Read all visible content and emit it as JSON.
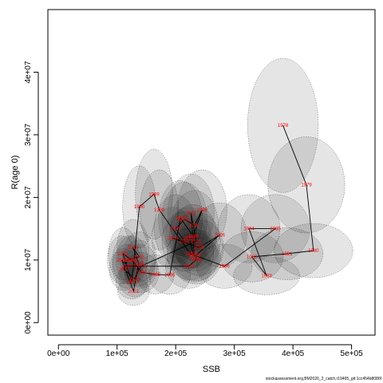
{
  "chart_data": {
    "type": "scatter",
    "xlabel": "SSB",
    "ylabel": "R(age 0)",
    "xlim": [
      -18000,
      540000
    ],
    "ylim": [
      -2000000,
      50000000
    ],
    "x_ticks": [
      {
        "value": 0,
        "label": "0e+00"
      },
      {
        "value": 100000,
        "label": "1e+05"
      },
      {
        "value": 200000,
        "label": "2e+05"
      },
      {
        "value": 300000,
        "label": "3e+05"
      },
      {
        "value": 400000,
        "label": "4e+05"
      },
      {
        "value": 500000,
        "label": "5e+05"
      }
    ],
    "y_ticks": [
      {
        "value": 0,
        "label": "0e+00"
      },
      {
        "value": 10000000,
        "label": "1e+07"
      },
      {
        "value": 20000000,
        "label": "2e+07"
      },
      {
        "value": 30000000,
        "label": "3e+07"
      },
      {
        "value": 40000000,
        "label": "4e+07"
      }
    ],
    "grid": false,
    "series": [
      {
        "points": [
          {
            "label": "1978",
            "x": 383000,
            "y": 31500000
          },
          {
            "label": "1979",
            "x": 423000,
            "y": 22000000
          },
          {
            "label": "1980",
            "x": 435000,
            "y": 11500000
          },
          {
            "label": "1981",
            "x": 390000,
            "y": 11000000
          },
          {
            "label": "1982",
            "x": 330000,
            "y": 10500000
          },
          {
            "label": "1983",
            "x": 355000,
            "y": 7500000
          },
          {
            "label": "1984",
            "x": 325000,
            "y": 15000000
          },
          {
            "label": "1985",
            "x": 370000,
            "y": 15000000
          },
          {
            "label": "1986",
            "x": 283000,
            "y": 9000000
          },
          {
            "label": "1987",
            "x": 225000,
            "y": 11000000
          },
          {
            "label": "1988",
            "x": 172000,
            "y": 18000000
          },
          {
            "label": "1989",
            "x": 163000,
            "y": 20500000
          },
          {
            "label": "1990",
            "x": 138000,
            "y": 18500000
          },
          {
            "label": "1991",
            "x": 125000,
            "y": 6500000
          },
          {
            "label": "1992",
            "x": 110000,
            "y": 11000000
          },
          {
            "label": "1993",
            "x": 125000,
            "y": 10000000
          },
          {
            "label": "1994",
            "x": 142000,
            "y": 8000000
          },
          {
            "label": "1995",
            "x": 165000,
            "y": 7700000
          },
          {
            "label": "1996",
            "x": 190000,
            "y": 7600000
          },
          {
            "label": "1997",
            "x": 208000,
            "y": 16700000
          },
          {
            "label": "1998",
            "x": 230000,
            "y": 13800000
          },
          {
            "label": "1999",
            "x": 245000,
            "y": 18000000
          },
          {
            "label": "2000",
            "x": 232000,
            "y": 15500000
          },
          {
            "label": "2001",
            "x": 215000,
            "y": 16500000
          },
          {
            "label": "2002",
            "x": 200000,
            "y": 15000000
          },
          {
            "label": "2003",
            "x": 215000,
            "y": 13000000
          },
          {
            "label": "2004",
            "x": 195000,
            "y": 13500000
          },
          {
            "label": "2005",
            "x": 240000,
            "y": 12000000
          },
          {
            "label": "2006",
            "x": 275000,
            "y": 14000000
          },
          {
            "label": "2007",
            "x": 235000,
            "y": 10800000
          },
          {
            "label": "2008",
            "x": 235000,
            "y": 10000000
          },
          {
            "label": "2009",
            "x": 222000,
            "y": 9000000
          },
          {
            "label": "2010",
            "x": 118000,
            "y": 9000000
          },
          {
            "label": "2011",
            "x": 108000,
            "y": 10000000
          },
          {
            "label": "2012",
            "x": 128000,
            "y": 5000000
          },
          {
            "label": "2013",
            "x": 137000,
            "y": 9500000
          },
          {
            "label": "2014",
            "x": 127000,
            "y": 12000000
          },
          {
            "label": "2015",
            "x": 138000,
            "y": 10500000
          },
          {
            "label": "2016",
            "x": 118000,
            "y": 10000000
          },
          {
            "label": "2017",
            "x": 112000,
            "y": 8500000
          },
          {
            "label": "2018",
            "x": 130000,
            "y": 7000000
          },
          {
            "label": "2019",
            "x": 140000,
            "y": 9000000
          },
          {
            "label": "2020",
            "x": 235000,
            "y": 13000000
          },
          {
            "label": "2021",
            "x": 226000,
            "y": 17500000
          },
          {
            "label": "2022",
            "x": 232000,
            "y": 10500000
          },
          {
            "label": "2023",
            "x": 222000,
            "y": 13500000
          }
        ]
      }
    ]
  },
  "caption": "stockassessment.org,BM2026_2_catch,r19465_git:1cc454b8086f"
}
